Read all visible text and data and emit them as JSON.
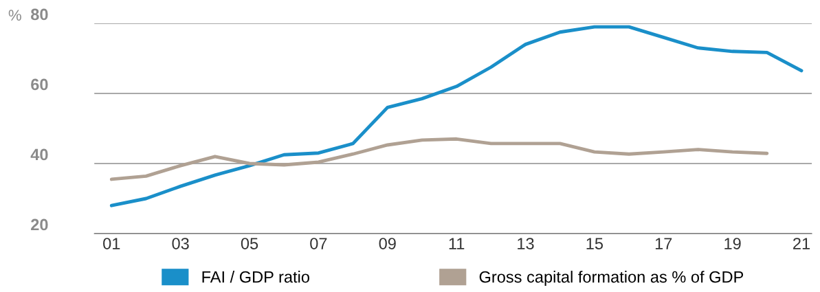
{
  "chart_data": {
    "type": "line",
    "ylabel": "%",
    "x": [
      1,
      2,
      3,
      4,
      5,
      6,
      7,
      8,
      9,
      10,
      11,
      12,
      13,
      14,
      15,
      16,
      17,
      18,
      19,
      20,
      21
    ],
    "series": [
      {
        "name": "FAI / GDP ratio",
        "color": "#1a8fc9",
        "values": [
          28,
          30,
          33.5,
          36.7,
          39.4,
          42.5,
          43,
          45.7,
          56,
          58.5,
          62,
          67.5,
          74,
          77.5,
          79,
          79,
          76,
          73,
          72,
          71.7,
          66.5
        ]
      },
      {
        "name": "Gross capital formation as % of GDP",
        "color": "#b0a193",
        "values": [
          35.5,
          36.4,
          39.4,
          42,
          40,
          39.6,
          40.4,
          42.7,
          45.3,
          46.7,
          47,
          45.7,
          45.7,
          45.7,
          43.3,
          42.7,
          43.3,
          44,
          43.3,
          42.9,
          null
        ]
      }
    ],
    "xlim": [
      0.5,
      21.3
    ],
    "ylim": [
      20,
      80
    ],
    "yticks": [
      20,
      40,
      60,
      80
    ],
    "xticks": [
      {
        "value": 1,
        "label": "01"
      },
      {
        "value": 3,
        "label": "03"
      },
      {
        "value": 5,
        "label": "05"
      },
      {
        "value": 7,
        "label": "07"
      },
      {
        "value": 9,
        "label": "09"
      },
      {
        "value": 11,
        "label": "11"
      },
      {
        "value": 13,
        "label": "13"
      },
      {
        "value": 15,
        "label": "15"
      },
      {
        "value": 17,
        "label": "17"
      },
      {
        "value": 19,
        "label": "19"
      },
      {
        "value": 21,
        "label": "21"
      }
    ],
    "grid": "y",
    "legend": "bottom",
    "line_style": "solid",
    "marker": "none"
  }
}
